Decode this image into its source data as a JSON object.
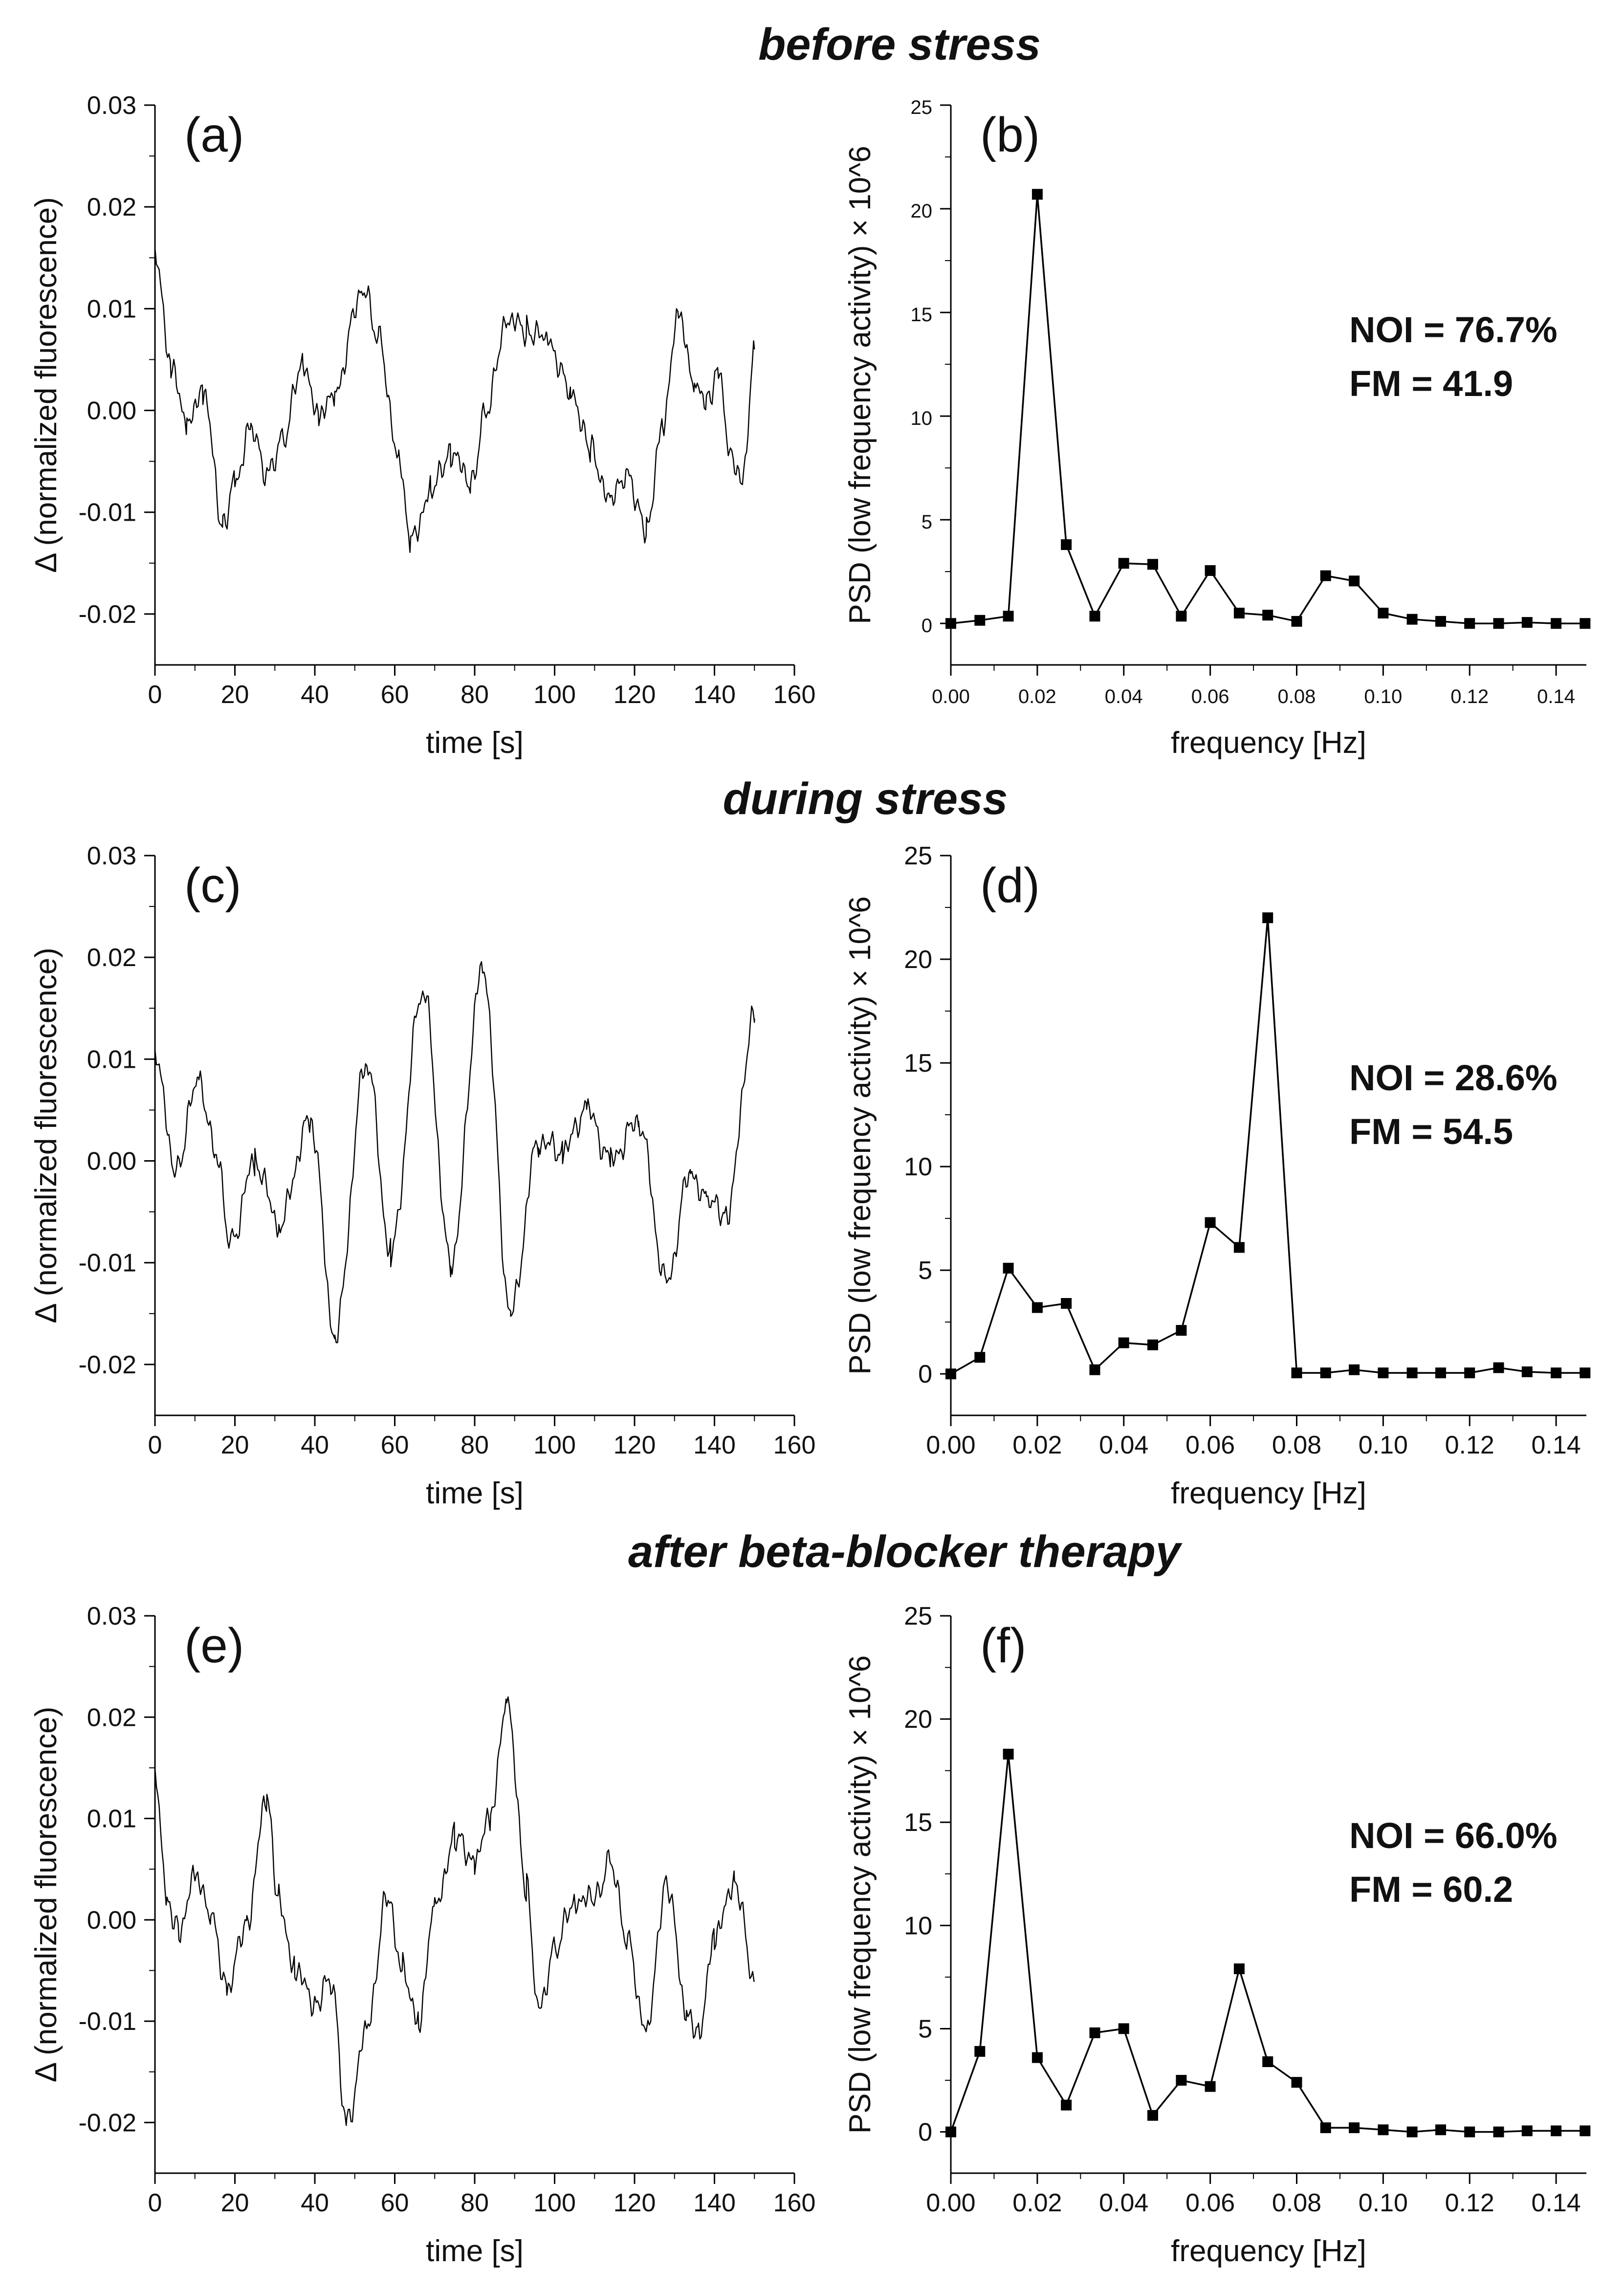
{
  "sections": [
    {
      "title": "before stress"
    },
    {
      "title": "during stress"
    },
    {
      "title": "after beta-blocker therapy"
    }
  ],
  "chart_data": [
    {
      "type": "line",
      "panel_label": "(a)",
      "xlabel": "time [s]",
      "ylabel": "Δ (normalized fluorescence)",
      "xlim": [
        0,
        160
      ],
      "ylim": [
        -0.025,
        0.03
      ],
      "x_ticks": [
        "0",
        "20",
        "40",
        "60",
        "80",
        "100",
        "120",
        "140",
        "160"
      ],
      "y_ticks": [
        "-0.02",
        "-0.01",
        "0.00",
        "0.01",
        "0.02",
        "0.03"
      ],
      "series": [
        {
          "name": "Δ fluorescence",
          "x": [
            0,
            4,
            8,
            12,
            17,
            20,
            24,
            28,
            32,
            37,
            41,
            45,
            52,
            56,
            61,
            64,
            69,
            74,
            79,
            83,
            88,
            93,
            98,
            104,
            109,
            114,
            118,
            123,
            127,
            131,
            135,
            138,
            141,
            144,
            147,
            150
          ],
          "y": [
            0.016,
            0.004,
            -0.001,
            0.002,
            -0.011,
            -0.007,
            -0.002,
            -0.006,
            -0.003,
            0.005,
            -0.001,
            0.002,
            0.012,
            0.007,
            -0.005,
            -0.013,
            -0.008,
            -0.004,
            -0.007,
            0.0,
            0.009,
            0.008,
            0.007,
            0.002,
            -0.004,
            -0.009,
            -0.006,
            -0.012,
            -0.001,
            0.009,
            0.003,
            0.001,
            0.004,
            -0.004,
            -0.007,
            0.006
          ]
        }
      ]
    },
    {
      "type": "line",
      "panel_label": "(b)",
      "xlabel": "frequency [Hz]",
      "ylabel": "PSD (low frequency activity) × 10^6",
      "xlim": [
        0,
        0.147
      ],
      "ylim": [
        -2,
        25
      ],
      "x_ticks": [
        "0.00",
        "0.02",
        "0.04",
        "0.06",
        "0.08",
        "0.10",
        "0.12",
        "0.14"
      ],
      "y_ticks": [
        "0",
        "5",
        "10",
        "15",
        "20",
        "25"
      ],
      "annotation_lines": [
        "NOI = 76.7%",
        "FM = 41.9"
      ],
      "series": [
        {
          "name": "PSD",
          "x": [
            0,
            0.0067,
            0.0133,
            0.02,
            0.0267,
            0.0333,
            0.04,
            0.0467,
            0.0533,
            0.06,
            0.0667,
            0.0733,
            0.08,
            0.0867,
            0.0933,
            0.1,
            0.1067,
            0.1133,
            0.12,
            0.1267,
            0.1333,
            0.14,
            0.1467
          ],
          "y": [
            0,
            0.15,
            0.35,
            20.7,
            3.8,
            0.35,
            2.9,
            2.85,
            0.35,
            2.55,
            0.5,
            0.4,
            0.1,
            2.3,
            2.05,
            0.5,
            0.2,
            0.1,
            0.0,
            0.0,
            0.05,
            0.0,
            0.0
          ]
        }
      ]
    },
    {
      "type": "line",
      "panel_label": "(c)",
      "xlabel": "time [s]",
      "ylabel": "Δ (normalized fluorescence)",
      "xlim": [
        0,
        160
      ],
      "ylim": [
        -0.025,
        0.03
      ],
      "x_ticks": [
        "0",
        "20",
        "40",
        "60",
        "80",
        "100",
        "120",
        "140",
        "160"
      ],
      "y_ticks": [
        "-0.02",
        "-0.01",
        "0.00",
        "0.01",
        "0.02",
        "0.03"
      ],
      "series": [
        {
          "name": "Δ fluorescence",
          "x": [
            0,
            5,
            11,
            15,
            19,
            25,
            31,
            39,
            45,
            53,
            59,
            67,
            74,
            82,
            89,
            96,
            102,
            108,
            114,
            121,
            128,
            134,
            138,
            143,
            150
          ],
          "y": [
            0.011,
            -0.001,
            0.008,
            0.001,
            -0.008,
            0.0,
            -0.006,
            0.004,
            -0.017,
            0.01,
            -0.009,
            0.017,
            -0.01,
            0.019,
            -0.015,
            0.002,
            0.001,
            0.005,
            0.0,
            0.004,
            -0.012,
            -0.001,
            -0.004,
            -0.005,
            0.014
          ]
        }
      ]
    },
    {
      "type": "line",
      "panel_label": "(d)",
      "xlabel": "frequency [Hz]",
      "ylabel": "PSD (low frequency activity) × 10^6",
      "xlim": [
        0,
        0.147
      ],
      "ylim": [
        -2,
        25
      ],
      "x_ticks": [
        "0.00",
        "0.02",
        "0.04",
        "0.06",
        "0.08",
        "0.10",
        "0.12",
        "0.14"
      ],
      "y_ticks": [
        "0",
        "5",
        "10",
        "15",
        "20",
        "25"
      ],
      "annotation_lines": [
        "NOI = 28.6%",
        "FM = 54.5"
      ],
      "series": [
        {
          "name": "PSD",
          "x": [
            0,
            0.0067,
            0.0133,
            0.02,
            0.0267,
            0.0333,
            0.04,
            0.0467,
            0.0533,
            0.06,
            0.0667,
            0.0733,
            0.08,
            0.0867,
            0.0933,
            0.1,
            0.1067,
            0.1133,
            0.12,
            0.1267,
            0.1333,
            0.14,
            0.1467
          ],
          "y": [
            0,
            0.8,
            5.1,
            3.2,
            3.4,
            0.2,
            1.5,
            1.4,
            2.1,
            7.3,
            6.1,
            22.0,
            0.05,
            0.05,
            0.2,
            0.05,
            0.05,
            0.05,
            0.05,
            0.3,
            0.1,
            0.05,
            0.05
          ]
        }
      ]
    },
    {
      "type": "line",
      "panel_label": "(e)",
      "xlabel": "time [s]",
      "ylabel": "Δ (normalized fluorescence)",
      "xlim": [
        0,
        160
      ],
      "ylim": [
        -0.025,
        0.03
      ],
      "x_ticks": [
        "0",
        "20",
        "40",
        "60",
        "80",
        "100",
        "120",
        "140",
        "160"
      ],
      "y_ticks": [
        "-0.02",
        "-0.01",
        "0.00",
        "0.01",
        "0.02",
        "0.03"
      ],
      "series": [
        {
          "name": "Δ fluorescence",
          "x": [
            0,
            3,
            6,
            10,
            14,
            18,
            23,
            28,
            31,
            35,
            40,
            44,
            48,
            53,
            58,
            62,
            66,
            70,
            75,
            80,
            84,
            88,
            93,
            96,
            100,
            105,
            110,
            114,
            118,
            123,
            128,
            133,
            136,
            140,
            145,
            150
          ],
          "y": [
            0.015,
            0.002,
            -0.001,
            0.004,
            0.001,
            -0.007,
            0.0,
            0.012,
            0.002,
            -0.005,
            -0.008,
            -0.006,
            -0.02,
            -0.011,
            0.002,
            -0.005,
            -0.01,
            0.001,
            0.008,
            0.006,
            0.01,
            0.022,
            0.003,
            -0.009,
            -0.003,
            0.002,
            0.002,
            0.006,
            -0.002,
            -0.011,
            0.004,
            -0.009,
            -0.011,
            -0.002,
            0.004,
            -0.006
          ]
        }
      ]
    },
    {
      "type": "line",
      "panel_label": "(f)",
      "xlabel": "frequency [Hz]",
      "ylabel": "PSD (low frequency activity) × 10^6",
      "xlim": [
        0,
        0.147
      ],
      "ylim": [
        -2,
        25
      ],
      "x_ticks": [
        "0.00",
        "0.02",
        "0.04",
        "0.06",
        "0.08",
        "0.10",
        "0.12",
        "0.14"
      ],
      "y_ticks": [
        "0",
        "5",
        "10",
        "15",
        "20",
        "25"
      ],
      "annotation_lines": [
        "NOI = 66.0%",
        "FM = 60.2"
      ],
      "series": [
        {
          "name": "PSD",
          "x": [
            0,
            0.0067,
            0.0133,
            0.02,
            0.0267,
            0.0333,
            0.04,
            0.0467,
            0.0533,
            0.06,
            0.0667,
            0.0733,
            0.08,
            0.0867,
            0.0933,
            0.1,
            0.1067,
            0.1133,
            0.12,
            0.1267,
            0.1333,
            0.14,
            0.1467
          ],
          "y": [
            0,
            3.9,
            18.3,
            3.6,
            1.3,
            4.8,
            5.0,
            0.8,
            2.5,
            2.2,
            7.9,
            3.4,
            2.4,
            0.2,
            0.2,
            0.1,
            0.0,
            0.1,
            0.0,
            0.0,
            0.05,
            0.05,
            0.05
          ]
        }
      ]
    }
  ]
}
